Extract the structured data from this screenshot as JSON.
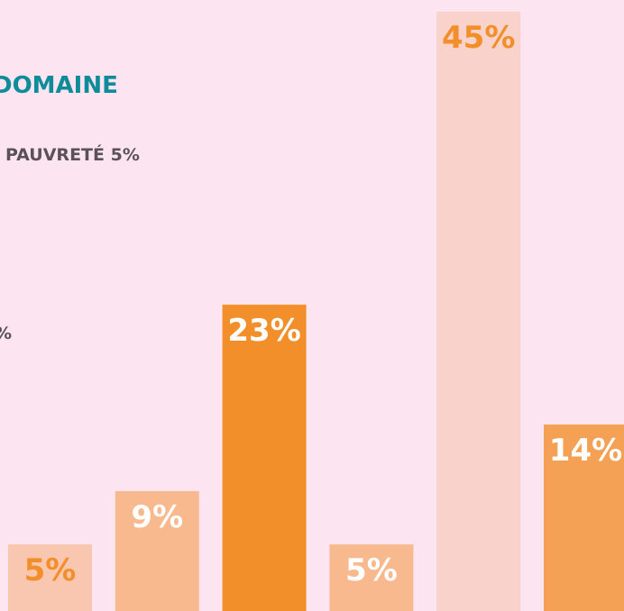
{
  "chart_data": {
    "type": "bar",
    "title": "DOMAINE",
    "annotations": [
      "PAUVRETÉ 5%",
      "%"
    ],
    "values": [
      5,
      9,
      23,
      5,
      45,
      14
    ],
    "value_labels": [
      "5%",
      "9%",
      "23%",
      "5%",
      "45%",
      "14%"
    ],
    "colors": [
      "#f9c6b0",
      "#f8b98f",
      "#f28f2a",
      "#f8b98f",
      "#f9d3cb",
      "#f4a055"
    ],
    "label_colors": [
      "#f28f2a",
      "#ffffff",
      "#ffffff",
      "#ffffff",
      "#f28f2a",
      "#ffffff"
    ]
  }
}
